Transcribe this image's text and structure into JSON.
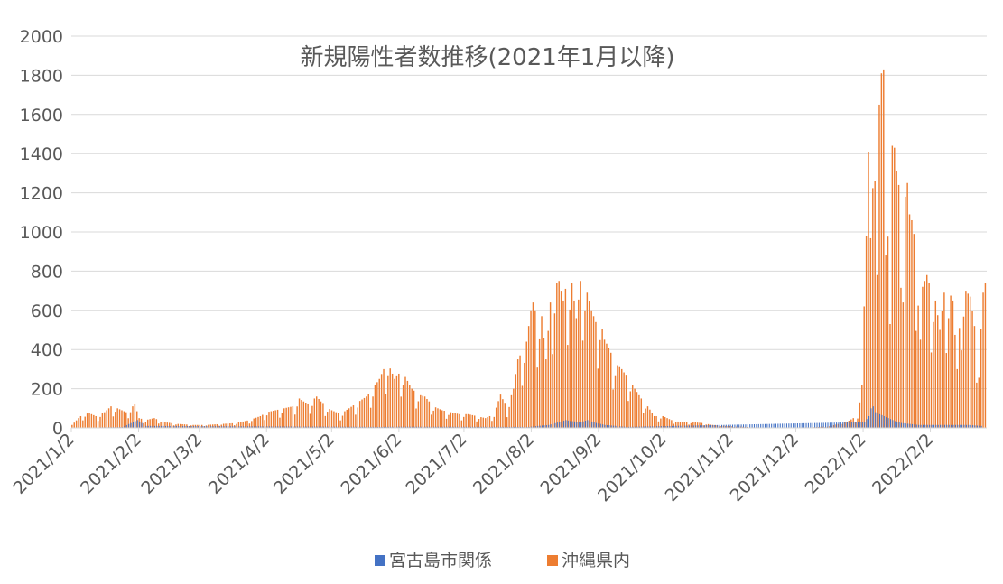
{
  "chart_data": {
    "type": "bar",
    "title": "新規陽性者数推移(2021年1月以降)",
    "xlabel": "",
    "ylabel": "",
    "ylim": [
      0,
      2000
    ],
    "y_ticks": [
      0,
      200,
      400,
      600,
      800,
      1000,
      1200,
      1400,
      1600,
      1800,
      2000
    ],
    "x_start": "2021/1/2",
    "x_end": "2022/2/28",
    "x_tick_labels": [
      "2021/1/2",
      "2021/2/2",
      "2021/3/2",
      "2021/4/2",
      "2021/5/2",
      "2021/6/2",
      "2021/7/2",
      "2021/8/2",
      "2021/9/2",
      "2021/10/2",
      "2021/11/2",
      "2021/12/2",
      "2022/1/2",
      "2022/2/2"
    ],
    "grid": true,
    "legend_position": "bottom",
    "series": [
      {
        "name": "宮古島市関係",
        "color": "#4472C4",
        "points": [
          [
            "2021/1/15",
            3
          ],
          [
            "2021/1/25",
            4
          ],
          [
            "2021/2/1",
            40
          ],
          [
            "2021/2/5",
            10
          ],
          [
            "2021/5/25",
            5
          ],
          [
            "2021/6/1",
            6
          ],
          [
            "2021/8/1",
            5
          ],
          [
            "2021/8/5",
            10
          ],
          [
            "2021/8/10",
            15
          ],
          [
            "2021/8/15",
            30
          ],
          [
            "2021/8/18",
            40
          ],
          [
            "2021/8/20",
            35
          ],
          [
            "2021/8/25",
            30
          ],
          [
            "2021/8/28",
            40
          ],
          [
            "2021/9/1",
            25
          ],
          [
            "2021/9/5",
            15
          ],
          [
            "2021/9/10",
            10
          ],
          [
            "2021/9/15",
            5
          ],
          [
            "2022/1/3",
            30
          ],
          [
            "2022/1/5",
            60
          ],
          [
            "2022/1/6",
            100
          ],
          [
            "2022/1/7",
            110
          ],
          [
            "2022/1/8",
            80
          ],
          [
            "2022/1/10",
            70
          ],
          [
            "2022/1/12",
            60
          ],
          [
            "2022/1/14",
            50
          ],
          [
            "2022/1/16",
            40
          ],
          [
            "2022/1/18",
            30
          ],
          [
            "2022/1/20",
            25
          ],
          [
            "2022/1/24",
            20
          ],
          [
            "2022/1/28",
            15
          ],
          [
            "2022/2/2",
            15
          ],
          [
            "2022/2/8",
            15
          ],
          [
            "2022/2/14",
            15
          ],
          [
            "2022/2/20",
            15
          ],
          [
            "2022/2/26",
            10
          ]
        ]
      },
      {
        "name": "沖縄県内",
        "color": "#ED7D31",
        "points": [
          [
            "2021/1/2",
            15
          ],
          [
            "2021/1/5",
            50
          ],
          [
            "2021/1/7",
            70
          ],
          [
            "2021/1/10",
            75
          ],
          [
            "2021/1/13",
            60
          ],
          [
            "2021/1/17",
            80
          ],
          [
            "2021/1/20",
            110
          ],
          [
            "2021/1/23",
            100
          ],
          [
            "2021/1/27",
            80
          ],
          [
            "2021/1/31",
            120
          ],
          [
            "2021/2/2",
            50
          ],
          [
            "2021/2/5",
            40
          ],
          [
            "2021/2/9",
            50
          ],
          [
            "2021/2/13",
            30
          ],
          [
            "2021/2/20",
            20
          ],
          [
            "2021/2/27",
            15
          ],
          [
            "2021/3/5",
            15
          ],
          [
            "2021/3/12",
            20
          ],
          [
            "2021/3/19",
            25
          ],
          [
            "2021/3/25",
            40
          ],
          [
            "2021/3/30",
            60
          ],
          [
            "2021/4/2",
            80
          ],
          [
            "2021/4/6",
            90
          ],
          [
            "2021/4/10",
            100
          ],
          [
            "2021/4/14",
            110
          ],
          [
            "2021/4/17",
            150
          ],
          [
            "2021/4/21",
            120
          ],
          [
            "2021/4/25",
            160
          ],
          [
            "2021/4/29",
            110
          ],
          [
            "2021/5/2",
            90
          ],
          [
            "2021/5/6",
            70
          ],
          [
            "2021/5/10",
            100
          ],
          [
            "2021/5/14",
            130
          ],
          [
            "2021/5/18",
            160
          ],
          [
            "2021/5/21",
            200
          ],
          [
            "2021/5/24",
            250
          ],
          [
            "2021/5/26",
            300
          ],
          [
            "2021/5/28",
            330
          ],
          [
            "2021/5/31",
            250
          ],
          [
            "2021/6/3",
            290
          ],
          [
            "2021/6/5",
            260
          ],
          [
            "2021/6/8",
            200
          ],
          [
            "2021/6/11",
            170
          ],
          [
            "2021/6/14",
            160
          ],
          [
            "2021/6/18",
            110
          ],
          [
            "2021/6/22",
            90
          ],
          [
            "2021/6/26",
            80
          ],
          [
            "2021/6/30",
            70
          ],
          [
            "2021/7/4",
            70
          ],
          [
            "2021/7/8",
            60
          ],
          [
            "2021/7/12",
            50
          ],
          [
            "2021/7/16",
            70
          ],
          [
            "2021/7/19",
            170
          ],
          [
            "2021/7/22",
            100
          ],
          [
            "2021/7/25",
            200
          ],
          [
            "2021/7/27",
            350
          ],
          [
            "2021/7/29",
            390
          ],
          [
            "2021/7/31",
            440
          ],
          [
            "2021/8/2",
            600
          ],
          [
            "2021/8/3",
            640
          ],
          [
            "2021/8/5",
            560
          ],
          [
            "2021/8/7",
            570
          ],
          [
            "2021/8/9",
            350
          ],
          [
            "2021/8/11",
            640
          ],
          [
            "2021/8/13",
            730
          ],
          [
            "2021/8/15",
            750
          ],
          [
            "2021/8/17",
            650
          ],
          [
            "2021/8/19",
            770
          ],
          [
            "2021/8/21",
            740
          ],
          [
            "2021/8/23",
            560
          ],
          [
            "2021/8/25",
            750
          ],
          [
            "2021/8/26",
            810
          ],
          [
            "2021/8/28",
            690
          ],
          [
            "2021/8/30",
            600
          ],
          [
            "2021/9/1",
            540
          ],
          [
            "2021/9/3",
            560
          ],
          [
            "2021/9/5",
            450
          ],
          [
            "2021/9/7",
            410
          ],
          [
            "2021/9/10",
            330
          ],
          [
            "2021/9/13",
            300
          ],
          [
            "2021/9/16",
            250
          ],
          [
            "2021/9/19",
            200
          ],
          [
            "2021/9/22",
            150
          ],
          [
            "2021/9/25",
            110
          ],
          [
            "2021/9/28",
            60
          ],
          [
            "2021/10/2",
            60
          ],
          [
            "2021/10/6",
            40
          ],
          [
            "2021/10/10",
            30
          ],
          [
            "2021/10/15",
            30
          ],
          [
            "2021/10/20",
            25
          ],
          [
            "2021/10/25",
            15
          ],
          [
            "2021/10/31",
            10
          ],
          [
            "2021/11/5",
            8
          ],
          [
            "2021/11/12",
            3
          ],
          [
            "2021/11/20",
            2
          ],
          [
            "2021/12/1",
            2
          ],
          [
            "2021/12/10",
            3
          ],
          [
            "2021/12/18",
            8
          ],
          [
            "2021/12/22",
            20
          ],
          [
            "2021/12/26",
            30
          ],
          [
            "2021/12/29",
            50
          ],
          [
            "2021/12/31",
            60
          ],
          [
            "2022/1/1",
            130
          ],
          [
            "2022/1/2",
            220
          ],
          [
            "2022/1/3",
            620
          ],
          [
            "2022/1/4",
            980
          ],
          [
            "2022/1/5",
            1410
          ],
          [
            "2022/1/6",
            1760
          ],
          [
            "2022/1/7",
            1530
          ],
          [
            "2022/1/8",
            1260
          ],
          [
            "2022/1/9",
            780
          ],
          [
            "2022/1/10",
            1650
          ],
          [
            "2022/1/11",
            1810
          ],
          [
            "2022/1/12",
            1830
          ],
          [
            "2022/1/13",
            1600
          ],
          [
            "2022/1/14",
            1220
          ],
          [
            "2022/1/15",
            530
          ],
          [
            "2022/1/16",
            1440
          ],
          [
            "2022/1/17",
            1430
          ],
          [
            "2022/1/18",
            1310
          ],
          [
            "2022/1/19",
            1240
          ],
          [
            "2022/1/20",
            1300
          ],
          [
            "2022/1/21",
            800
          ],
          [
            "2022/1/22",
            1180
          ],
          [
            "2022/1/23",
            1250
          ],
          [
            "2022/1/24",
            1090
          ],
          [
            "2022/1/25",
            1060
          ],
          [
            "2022/1/26",
            990
          ],
          [
            "2022/1/27",
            900
          ],
          [
            "2022/1/28",
            780
          ],
          [
            "2022/1/29",
            450
          ],
          [
            "2022/1/30",
            720
          ],
          [
            "2022/2/1",
            780
          ],
          [
            "2022/2/3",
            700
          ],
          [
            "2022/2/5",
            650
          ],
          [
            "2022/2/7",
            500
          ],
          [
            "2022/2/9",
            690
          ],
          [
            "2022/2/11",
            700
          ],
          [
            "2022/2/13",
            650
          ],
          [
            "2022/2/15",
            300
          ],
          [
            "2022/2/17",
            720
          ],
          [
            "2022/2/19",
            700
          ],
          [
            "2022/2/21",
            670
          ],
          [
            "2022/2/23",
            520
          ],
          [
            "2022/2/25",
            320
          ],
          [
            "2022/2/27",
            690
          ],
          [
            "2022/2/28",
            740
          ]
        ]
      }
    ]
  }
}
